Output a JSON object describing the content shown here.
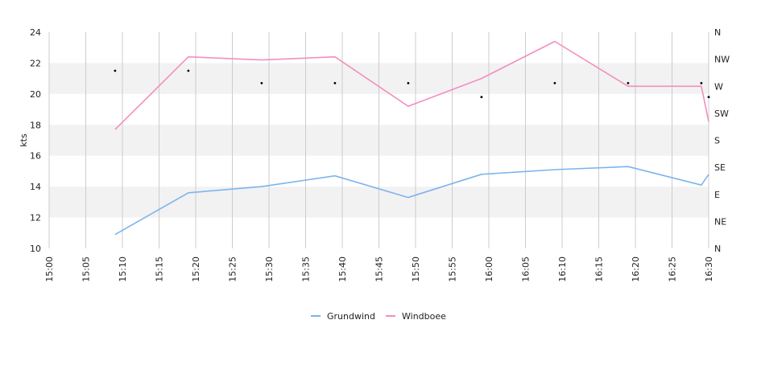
{
  "chart_data": {
    "type": "line",
    "ylabel": "kts",
    "ylim": [
      10,
      24
    ],
    "y_ticks": [
      "10",
      "12",
      "14",
      "16",
      "18",
      "20",
      "22",
      "24"
    ],
    "x_ticks": [
      "15:00",
      "15:05",
      "15:10",
      "15:15",
      "15:20",
      "15:25",
      "15:30",
      "15:35",
      "15:40",
      "15:45",
      "15:50",
      "15:55",
      "16:00",
      "16:05",
      "16:10",
      "16:15",
      "16:20",
      "16:25",
      "16:30"
    ],
    "xlim": [
      "15:00",
      "16:30"
    ],
    "right_axis_ticks": [
      "N",
      "NE",
      "E",
      "SE",
      "S",
      "SW",
      "W",
      "NW",
      "N"
    ],
    "series": [
      {
        "name": "Grundwind",
        "color": "#7cb5ec",
        "points": [
          [
            "15:09",
            10.9
          ],
          [
            "15:19",
            13.6
          ],
          [
            "15:29",
            14.0
          ],
          [
            "15:39",
            14.7
          ],
          [
            "15:49",
            13.3
          ],
          [
            "15:59",
            14.8
          ],
          [
            "16:09",
            15.1
          ],
          [
            "16:19",
            15.3
          ],
          [
            "16:29",
            14.1
          ],
          [
            "16:30",
            14.8
          ]
        ]
      },
      {
        "name": "Windboee",
        "color": "#f28fbf",
        "points": [
          [
            "15:09",
            17.7
          ],
          [
            "15:19",
            22.4
          ],
          [
            "15:29",
            22.2
          ],
          [
            "15:39",
            22.4
          ],
          [
            "15:49",
            19.2
          ],
          [
            "15:59",
            21.0
          ],
          [
            "16:09",
            23.4
          ],
          [
            "16:19",
            20.5
          ],
          [
            "16:29",
            20.5
          ],
          [
            "16:30",
            18.2
          ]
        ]
      }
    ],
    "direction_markers": [
      [
        "15:09",
        21.5
      ],
      [
        "15:19",
        21.5
      ],
      [
        "15:29",
        20.7
      ],
      [
        "15:39",
        20.7
      ],
      [
        "15:49",
        20.7
      ],
      [
        "15:59",
        19.8
      ],
      [
        "16:09",
        20.7
      ],
      [
        "16:19",
        20.7
      ],
      [
        "16:29",
        20.7
      ],
      [
        "16:30",
        19.8
      ]
    ],
    "grid": true,
    "legend_position": "bottom-center"
  }
}
